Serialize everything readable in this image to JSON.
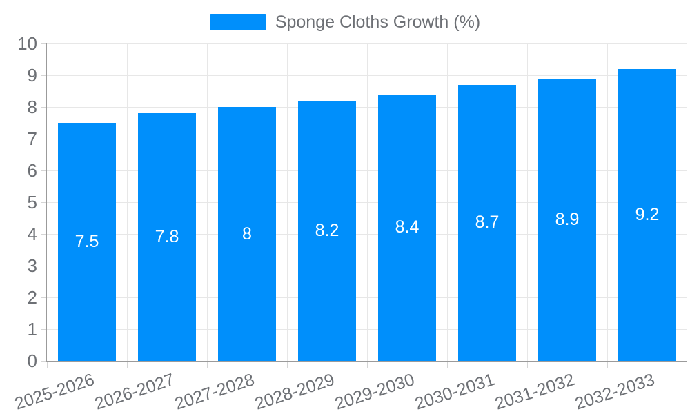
{
  "chart_data": {
    "type": "bar",
    "legend": "Sponge Cloths Growth (%)",
    "legend_position": "top",
    "categories": [
      "2025-2026",
      "2026-2027",
      "2027-2028",
      "2028-2029",
      "2029-2030",
      "2030-2031",
      "2031-2032",
      "2032-2033"
    ],
    "series": [
      {
        "name": "Sponge Cloths Growth (%)",
        "values": [
          7.5,
          7.8,
          8,
          8.2,
          8.4,
          8.7,
          8.9,
          9.2
        ],
        "value_labels": [
          "7.5",
          "7.8",
          "8",
          "8.2",
          "8.4",
          "8.7",
          "8.9",
          "9.2"
        ]
      }
    ],
    "xlabel": "",
    "ylabel": "",
    "ylim": [
      0,
      10
    ],
    "yticks": [
      0,
      1,
      2,
      3,
      4,
      5,
      6,
      7,
      8,
      9,
      10
    ],
    "grid": true,
    "x_label_rotation_deg": -18,
    "colors": {
      "bar": "#008ffb",
      "grid": "#e7e7e7",
      "axis": "#9b9b9b",
      "tick": "#d5d5d5",
      "label_text": "#6d7075",
      "value_text": "#ffffff",
      "background": "#ffffff"
    }
  }
}
